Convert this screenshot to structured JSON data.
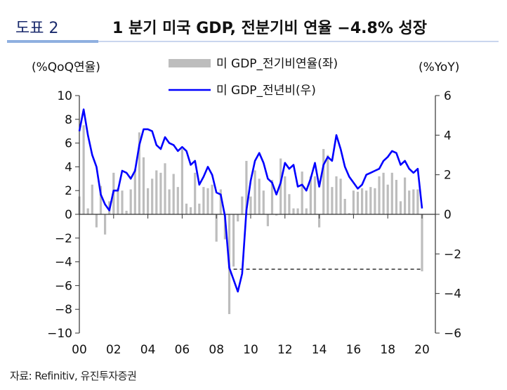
{
  "header": {
    "label": "도표 2",
    "title": "1 분기 미국 GDP, 전분기비 연율 −4.8% 성장"
  },
  "source": "자료: Refinitiv, 유진투자증권",
  "chart_data": {
    "type": "bar+line",
    "title": "1 분기 미국 GDP, 전분기비 연율 −4.8% 성장",
    "left_axis_label": "(%QoQ연율)",
    "right_axis_label": "(%YoY)",
    "ylim_left": [
      -10,
      10
    ],
    "ylim_right": [
      -6,
      6
    ],
    "yticks_left": [
      "10",
      "8",
      "6",
      "4",
      "2",
      "0",
      "−2",
      "−4",
      "−6",
      "−8",
      "−10"
    ],
    "yticks_right": [
      "6",
      "4",
      "2",
      "0",
      "−2",
      "−4",
      "−6"
    ],
    "xticks": [
      "00",
      "02",
      "04",
      "06",
      "08",
      "10",
      "12",
      "14",
      "16",
      "18",
      "20"
    ],
    "x_start": 2000,
    "frequency": "quarterly",
    "legend": [
      "미 GDP_전기비연율(좌)",
      "미 GDP_전년비(우)"
    ],
    "colors": {
      "bar": "#bdbdbd",
      "line": "#0000ff"
    },
    "reference_line": {
      "style": "dashed",
      "from_year": 2009,
      "to_year": 2020,
      "value_left": -4.8
    },
    "series": [
      {
        "name": "미 GDP_전기비연율(좌)",
        "type": "bar",
        "axis": "left",
        "values": [
          1.5,
          7.5,
          0.5,
          2.5,
          -1.1,
          2.4,
          -1.7,
          1.1,
          3.5,
          2.2,
          2.0,
          0.3,
          2.1,
          3.8,
          6.9,
          4.8,
          2.2,
          3.0,
          3.7,
          3.5,
          4.3,
          2.1,
          3.4,
          2.3,
          5.5,
          0.9,
          0.6,
          3.5,
          0.9,
          2.3,
          2.2,
          2.5,
          -2.3,
          2.1,
          -2.1,
          -8.4,
          -4.4,
          -0.6,
          1.5,
          4.5,
          1.5,
          3.7,
          3.0,
          2.0,
          -1.0,
          2.9,
          -0.1,
          4.7,
          3.2,
          1.7,
          0.5,
          0.5,
          3.6,
          0.5,
          3.2,
          3.2,
          -1.1,
          5.5,
          5.0,
          2.3,
          3.2,
          3.0,
          1.3,
          0.1,
          2.0,
          1.9,
          2.2,
          2.0,
          2.3,
          2.2,
          3.2,
          3.5,
          2.5,
          3.5,
          2.9,
          1.1,
          3.1,
          2.0,
          2.1,
          2.1,
          -4.8
        ]
      },
      {
        "name": "미 GDP_전년비(우)",
        "type": "line",
        "axis": "right",
        "values": [
          4.2,
          5.3,
          4.0,
          3.0,
          2.4,
          1.0,
          0.5,
          0.2,
          1.2,
          1.2,
          2.2,
          2.1,
          1.8,
          2.2,
          3.5,
          4.3,
          4.3,
          4.2,
          3.5,
          3.3,
          3.9,
          3.6,
          3.5,
          3.2,
          3.4,
          3.2,
          2.5,
          2.7,
          1.5,
          1.9,
          2.4,
          2.0,
          1.1,
          1.0,
          -0.1,
          -2.7,
          -3.3,
          -3.9,
          -3.0,
          0.2,
          1.7,
          2.7,
          3.1,
          2.6,
          1.8,
          1.6,
          1.0,
          1.6,
          2.6,
          2.3,
          2.5,
          1.4,
          1.5,
          1.2,
          1.8,
          2.6,
          1.4,
          2.5,
          2.9,
          2.7,
          4.0,
          3.3,
          2.4,
          1.9,
          1.6,
          1.3,
          1.5,
          2.0,
          2.1,
          2.2,
          2.3,
          2.7,
          2.9,
          3.2,
          3.1,
          2.5,
          2.7,
          2.3,
          2.1,
          2.3,
          0.3
        ]
      }
    ]
  }
}
